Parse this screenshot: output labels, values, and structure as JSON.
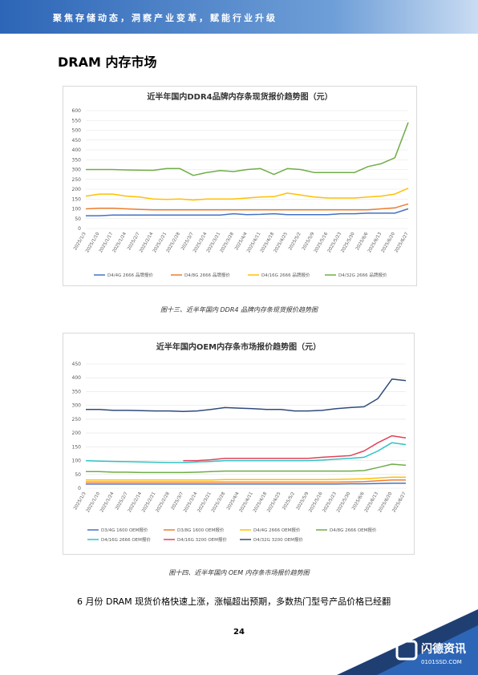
{
  "header": {
    "slogan": "聚焦存储动态，洞察产业变革，赋能行业升级"
  },
  "section_title": "DRAM 内存市场",
  "chart_data": [
    {
      "type": "line",
      "title": "近半年国内DDR4品牌内存条现货报价趋势图（元）",
      "categories": [
        "2025/1/3",
        "2025/1/10",
        "2025/1/17",
        "2025/1/24",
        "2025/2/7",
        "2025/2/14",
        "2025/2/21",
        "2025/2/28",
        "2025/3/7",
        "2025/3/14",
        "2025/3/21",
        "2025/3/28",
        "2025/4/4",
        "2025/4/11",
        "2025/4/18",
        "2025/4/25",
        "2025/5/2",
        "2025/5/9",
        "2025/5/16",
        "2025/5/23",
        "2025/5/30",
        "2025/6/6",
        "2025/6/13",
        "2025/6/20",
        "2025/6/27"
      ],
      "series": [
        {
          "name": "D4/4G 2666 品牌报价",
          "color": "#4472c4",
          "values": [
            65,
            65,
            68,
            68,
            68,
            68,
            68,
            68,
            68,
            68,
            68,
            75,
            70,
            72,
            75,
            70,
            70,
            70,
            70,
            75,
            75,
            78,
            78,
            78,
            100
          ]
        },
        {
          "name": "D4/8G 2666 品牌报价",
          "color": "#ed7d31",
          "values": [
            100,
            103,
            103,
            100,
            97,
            95,
            95,
            95,
            95,
            95,
            95,
            95,
            95,
            95,
            95,
            95,
            95,
            95,
            95,
            95,
            95,
            95,
            100,
            105,
            125
          ]
        },
        {
          "name": "D4/16G 2666 品牌报价",
          "color": "#ffc000",
          "values": [
            165,
            175,
            175,
            165,
            160,
            150,
            148,
            150,
            145,
            150,
            150,
            150,
            155,
            160,
            162,
            180,
            170,
            160,
            155,
            155,
            155,
            160,
            165,
            175,
            205
          ]
        },
        {
          "name": "D4/32G 2666 品牌报价",
          "color": "#70ad47",
          "values": [
            300,
            300,
            300,
            298,
            297,
            296,
            305,
            305,
            270,
            285,
            295,
            290,
            300,
            305,
            275,
            305,
            300,
            285,
            285,
            285,
            285,
            315,
            330,
            360,
            540
          ]
        }
      ],
      "ylim": [
        0,
        600
      ],
      "yticks": [
        0,
        50,
        100,
        150,
        200,
        250,
        300,
        350,
        400,
        450,
        500,
        550,
        600
      ],
      "grid": true
    },
    {
      "type": "line",
      "title": "近半年国内OEM内存条市场报价趋势图（元）",
      "categories": [
        "2025/1/3",
        "2025/1/10",
        "2025/1/24",
        "2025/2/7",
        "2025/2/14",
        "2025/2/21",
        "2025/2/28",
        "2025/3/7",
        "2025/3/14",
        "2025/3/21",
        "2025/3/28",
        "2025/4/4",
        "2025/4/11",
        "2025/4/18",
        "2025/4/25",
        "2025/5/2",
        "2025/5/9",
        "2025/5/16",
        "2025/5/23",
        "2025/5/30",
        "2025/6/6",
        "2025/6/13",
        "2025/6/20",
        "2025/6/27"
      ],
      "series": [
        {
          "name": "D3/4G 1600 OEM报价",
          "color": "#4472c4",
          "values": [
            15,
            15,
            15,
            15,
            15,
            15,
            15,
            15,
            15,
            15,
            15,
            15,
            15,
            15,
            15,
            15,
            15,
            15,
            15,
            16,
            16,
            17,
            18,
            18
          ]
        },
        {
          "name": "D3/8G 1600 OEM报价",
          "color": "#ed7d31",
          "values": [
            22,
            22,
            22,
            22,
            22,
            22,
            22,
            22,
            22,
            22,
            22,
            22,
            22,
            22,
            22,
            22,
            22,
            22,
            22,
            23,
            24,
            27,
            30,
            30
          ]
        },
        {
          "name": "D4/4G 2666 OEM报价",
          "color": "#ffc000",
          "values": [
            30,
            30,
            30,
            30,
            30,
            30,
            30,
            30,
            30,
            30,
            31,
            31,
            31,
            31,
            31,
            31,
            31,
            31,
            32,
            33,
            34,
            37,
            40,
            40
          ]
        },
        {
          "name": "D4/8G 2666 OEM报价",
          "color": "#70ad47",
          "values": [
            60,
            60,
            58,
            58,
            57,
            57,
            57,
            57,
            58,
            60,
            62,
            62,
            62,
            62,
            62,
            62,
            62,
            62,
            62,
            62,
            64,
            75,
            87,
            83
          ]
        },
        {
          "name": "D4/16G 2666 OEM报价",
          "color": "#2ec4c4",
          "values": [
            100,
            98,
            97,
            96,
            95,
            94,
            93,
            93,
            95,
            97,
            100,
            100,
            100,
            100,
            100,
            100,
            100,
            102,
            105,
            108,
            112,
            135,
            165,
            158
          ]
        },
        {
          "name": "D4/16G 3200 OEM报价",
          "color": "#e0435a",
          "values": [
            null,
            null,
            null,
            null,
            null,
            null,
            null,
            100,
            100,
            103,
            108,
            108,
            108,
            108,
            108,
            108,
            108,
            112,
            115,
            118,
            135,
            165,
            190,
            182
          ]
        },
        {
          "name": "D4/32G 3200 OEM报价",
          "color": "#2f4b7c",
          "values": [
            285,
            285,
            282,
            282,
            281,
            280,
            280,
            278,
            280,
            285,
            292,
            290,
            288,
            285,
            285,
            280,
            280,
            282,
            288,
            292,
            295,
            325,
            395,
            390
          ]
        }
      ],
      "ylim": [
        0,
        450
      ],
      "yticks": [
        0,
        50,
        100,
        150,
        200,
        250,
        300,
        350,
        400,
        450
      ],
      "grid": true
    }
  ],
  "captions": [
    "图十三、近半年国内 DDR4 品牌内存条现货报价趋势图",
    "图十四、近半年国内 OEM 内存条市场报价趋势图"
  ],
  "body": "6 月份 DRAM 现货价格快速上涨，涨幅超出预期，多数热门型号产品价格已经翻",
  "page_number": "24",
  "footer": {
    "brand": "闪德资讯",
    "site": "0101SSD.COM"
  }
}
